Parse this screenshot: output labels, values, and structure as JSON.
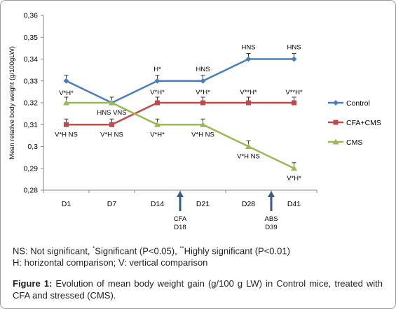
{
  "chart_data": {
    "type": "line",
    "ylabel": "Mean relative body weight (g/100gLW)",
    "ylim": [
      0.28,
      0.36
    ],
    "yticks": [
      "0,28",
      "0,29",
      "0,3",
      "0,31",
      "0,32",
      "0,33",
      "0,34",
      "0,35",
      "0,36"
    ],
    "categories": [
      "D1",
      "D7",
      "D14",
      "D21",
      "D28",
      "D41"
    ],
    "grid": false,
    "legend_position": "right",
    "series": [
      {
        "name": "Control",
        "color": "#4a7ebb",
        "marker": "diamond",
        "values": [
          0.33,
          0.32,
          0.33,
          0.33,
          0.34,
          0.34
        ],
        "labels": [
          "V*H*",
          "",
          "H*",
          "HNS",
          "HNS",
          "HNS"
        ]
      },
      {
        "name": "CFA+CMS",
        "color": "#be4b48",
        "marker": "square",
        "values": [
          0.31,
          0.31,
          0.32,
          0.32,
          0.32,
          0.32
        ],
        "labels": [
          "V*H NS",
          "V*H NS",
          "V*H*",
          "V*H*",
          "V**H*",
          "V**H*"
        ]
      },
      {
        "name": "CMS",
        "color": "#98b954",
        "marker": "triangle",
        "values": [
          0.32,
          0.32,
          0.31,
          0.31,
          0.3,
          0.29
        ],
        "labels": [
          "",
          "HNS VNS",
          "V*H*",
          "V*H NS",
          "V*H NS",
          "V*H*"
        ]
      }
    ],
    "arrows": [
      {
        "position": "between D14 and D21",
        "label_line1": "CFA",
        "label_line2": "D18"
      },
      {
        "position": "between D28 and D41",
        "label_line1": "ABS",
        "label_line2": "D39"
      }
    ]
  },
  "notes": {
    "line1_ns": "NS: Not significant, ",
    "line1_sig_mark": "*",
    "line1_sig": "Significant (P<0.05), ",
    "line1_hsig_mark": "**",
    "line1_hsig": "Highly significant (P<0.01)",
    "line2": "H: horizontal comparison; V: vertical comparison"
  },
  "caption": {
    "figure_label": "Figure 1:",
    "text": " Evolution of mean body weight gain (g/100 g LW) in Control mice, treated with CFA and stressed (CMS)."
  }
}
